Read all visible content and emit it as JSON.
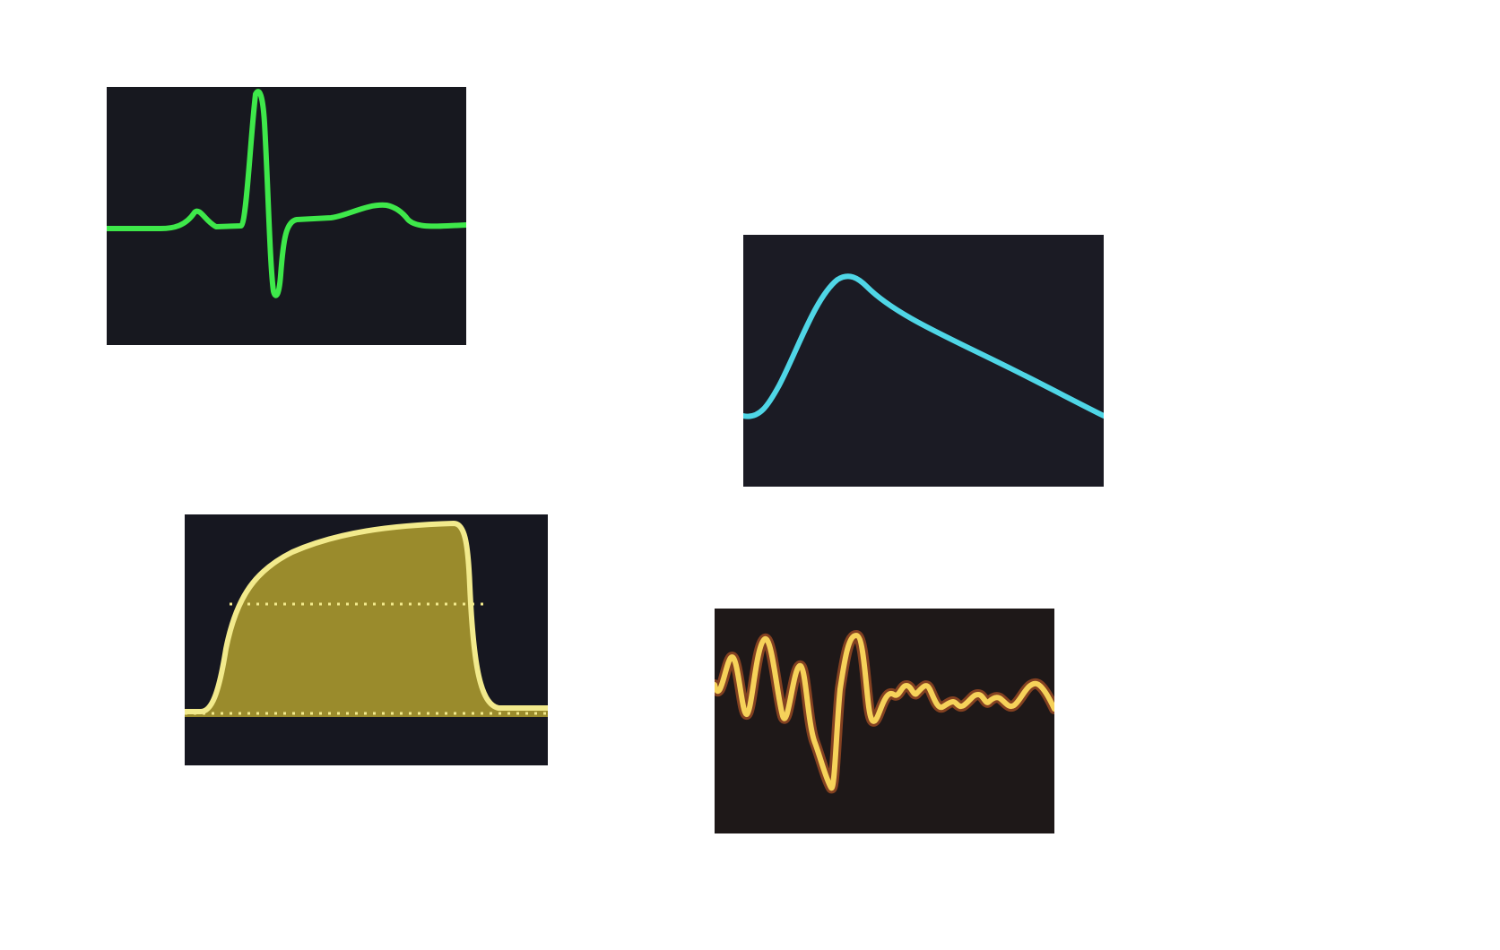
{
  "waveform_panels": [
    {
      "id": "ecg",
      "icon": "ecg-waveform-icon",
      "trace_color": "#3ee84a",
      "background": "#17181f"
    },
    {
      "id": "pleth",
      "icon": "pleth-waveform-icon",
      "trace_color": "#4fd6e6",
      "background": "#1b1b24"
    },
    {
      "id": "capno",
      "icon": "capnography-waveform-icon",
      "trace_color": "#f2ea8c",
      "fill_color": "#a9982e",
      "background": "#161720"
    },
    {
      "id": "resp",
      "icon": "respiratory-waveform-icon",
      "trace_color": "#f6d25a",
      "glow_color": "#d9642a",
      "background": "#1e1818"
    }
  ]
}
